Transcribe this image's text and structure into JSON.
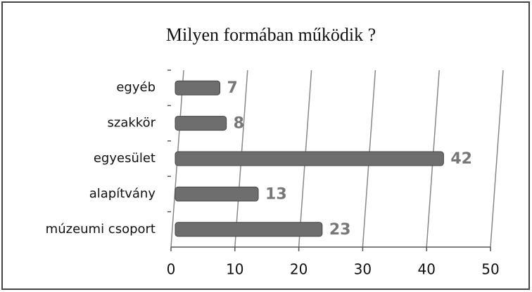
{
  "chart_data": {
    "type": "hbar",
    "title": "Milyen formában működik ?",
    "categories": [
      "egyéb",
      "szakkör",
      "egyesület",
      "alapítvány",
      "múzeumi csoport"
    ],
    "values": [
      7,
      8,
      42,
      13,
      23
    ],
    "color": "#6e6e6e",
    "xlim": [
      0,
      50
    ],
    "xticks": [
      0,
      10,
      20,
      30,
      40,
      50
    ],
    "grid": true
  }
}
